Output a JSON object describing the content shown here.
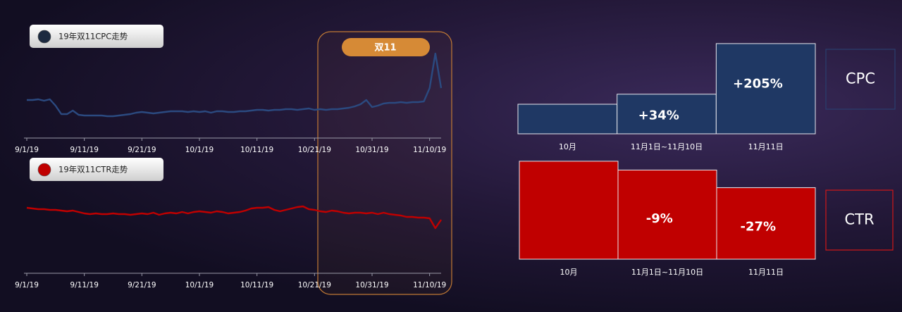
{
  "highlight_label": "双11",
  "chart_data": [
    {
      "type": "line",
      "series": [
        {
          "name": "19年双11CPC走势",
          "color": "#2b4a80",
          "dot": "#1c2a40",
          "values": [
            58,
            58,
            59,
            57,
            59,
            50,
            38,
            38,
            43,
            37,
            36,
            36,
            36,
            36,
            35,
            35,
            36,
            37,
            38,
            40,
            41,
            40,
            39,
            40,
            41,
            42,
            42,
            42,
            41,
            42,
            41,
            42,
            40,
            42,
            42,
            41,
            41,
            42,
            42,
            43,
            44,
            44,
            43,
            44,
            44,
            45,
            45,
            44,
            45,
            46,
            44,
            45,
            44,
            45,
            45,
            46,
            47,
            49,
            52,
            58,
            48,
            50,
            53,
            54,
            54,
            55,
            54,
            55,
            55,
            56,
            75,
            124,
            75
          ]
        }
      ],
      "x": [
        "9/1/19",
        "9/2/19",
        "9/3/19",
        "9/4/19",
        "9/5/19",
        "9/6/19",
        "9/7/19",
        "9/8/19",
        "9/9/19",
        "9/10/19",
        "9/11/19",
        "9/12/19",
        "9/13/19",
        "9/14/19",
        "9/15/19",
        "9/16/19",
        "9/17/19",
        "9/18/19",
        "9/19/19",
        "9/20/19",
        "9/21/19",
        "9/22/19",
        "9/23/19",
        "9/24/19",
        "9/25/19",
        "9/26/19",
        "9/27/19",
        "9/28/19",
        "9/29/19",
        "9/30/19",
        "10/1/19",
        "10/2/19",
        "10/3/19",
        "10/4/19",
        "10/5/19",
        "10/6/19",
        "10/7/19",
        "10/8/19",
        "10/9/19",
        "10/10/19",
        "10/11/19",
        "10/12/19",
        "10/13/19",
        "10/14/19",
        "10/15/19",
        "10/16/19",
        "10/17/19",
        "10/18/19",
        "10/19/19",
        "10/20/19",
        "10/21/19",
        "10/22/19",
        "10/23/19",
        "10/24/19",
        "10/25/19",
        "10/26/19",
        "10/27/19",
        "10/28/19",
        "10/29/19",
        "10/30/19",
        "10/31/19",
        "11/1/19",
        "11/2/19",
        "11/3/19",
        "11/4/19",
        "11/5/19",
        "11/6/19",
        "11/7/19",
        "11/8/19",
        "11/9/19",
        "11/10/19",
        "11/11/19",
        "11/12/19"
      ],
      "xticks": [
        "9/1/19",
        "9/11/19",
        "9/21/19",
        "10/1/19",
        "10/11/19",
        "10/21/19",
        "10/31/19",
        "11/10/19"
      ],
      "ylim": [
        4,
        140
      ]
    },
    {
      "type": "line",
      "series": [
        {
          "name": "19年双11CTR走势",
          "color": "#c00000",
          "dot": "#c00000",
          "values": [
            105,
            104,
            103,
            103,
            102,
            102,
            101,
            100,
            101,
            99,
            97,
            96,
            97,
            96,
            96,
            97,
            96,
            96,
            95,
            96,
            97,
            96,
            98,
            95,
            97,
            98,
            97,
            99,
            97,
            99,
            100,
            99,
            98,
            100,
            99,
            97,
            98,
            99,
            101,
            104,
            105,
            105,
            106,
            102,
            100,
            102,
            104,
            106,
            107,
            103,
            102,
            100,
            99,
            101,
            100,
            98,
            97,
            98,
            98,
            97,
            98,
            96,
            98,
            96,
            95,
            94,
            92,
            92,
            91,
            91,
            90,
            76,
            88
          ]
        }
      ],
      "x": [
        "9/1/19",
        "9/2/19",
        "9/3/19",
        "9/4/19",
        "9/5/19",
        "9/6/19",
        "9/7/19",
        "9/8/19",
        "9/9/19",
        "9/10/19",
        "9/11/19",
        "9/12/19",
        "9/13/19",
        "9/14/19",
        "9/15/19",
        "9/16/19",
        "9/17/19",
        "9/18/19",
        "9/19/19",
        "9/20/19",
        "9/21/19",
        "9/22/19",
        "9/23/19",
        "9/24/19",
        "9/25/19",
        "9/26/19",
        "9/27/19",
        "9/28/19",
        "9/29/19",
        "9/30/19",
        "10/1/19",
        "10/2/19",
        "10/3/19",
        "10/4/19",
        "10/5/19",
        "10/6/19",
        "10/7/19",
        "10/8/19",
        "10/9/19",
        "10/10/19",
        "10/11/19",
        "10/12/19",
        "10/13/19",
        "10/14/19",
        "10/15/19",
        "10/16/19",
        "10/17/19",
        "10/18/19",
        "10/19/19",
        "10/20/19",
        "10/21/19",
        "10/22/19",
        "10/23/19",
        "10/24/19",
        "10/25/19",
        "10/26/19",
        "10/27/19",
        "10/28/19",
        "10/29/19",
        "10/30/19",
        "10/31/19",
        "11/1/19",
        "11/2/19",
        "11/3/19",
        "11/4/19",
        "11/5/19",
        "11/6/19",
        "11/7/19",
        "11/8/19",
        "11/9/19",
        "11/10/19",
        "11/11/19",
        "11/12/19"
      ],
      "xticks": [
        "9/1/19",
        "9/11/19",
        "9/21/19",
        "10/1/19",
        "10/11/19",
        "10/21/19",
        "10/31/19",
        "11/10/19"
      ],
      "ylim": [
        12,
        152
      ]
    },
    {
      "type": "bar",
      "title": "CPC",
      "color": "#1f3864",
      "border": "#2a3f6e",
      "categories": [
        "10月",
        "11月1日~11月10日",
        "11月11日"
      ],
      "values": [
        100,
        134,
        305
      ],
      "annotations": [
        null,
        "+34%",
        "+205%"
      ],
      "ylim": [
        0,
        330
      ]
    },
    {
      "type": "bar",
      "title": "CTR",
      "color": "#c00000",
      "border": "#d01818",
      "categories": [
        "10月",
        "11月1日~11月10日",
        "11月11日"
      ],
      "values": [
        100,
        91,
        73
      ],
      "annotations": [
        null,
        "-9%",
        "-27%"
      ],
      "ylim": [
        0,
        110
      ]
    }
  ]
}
